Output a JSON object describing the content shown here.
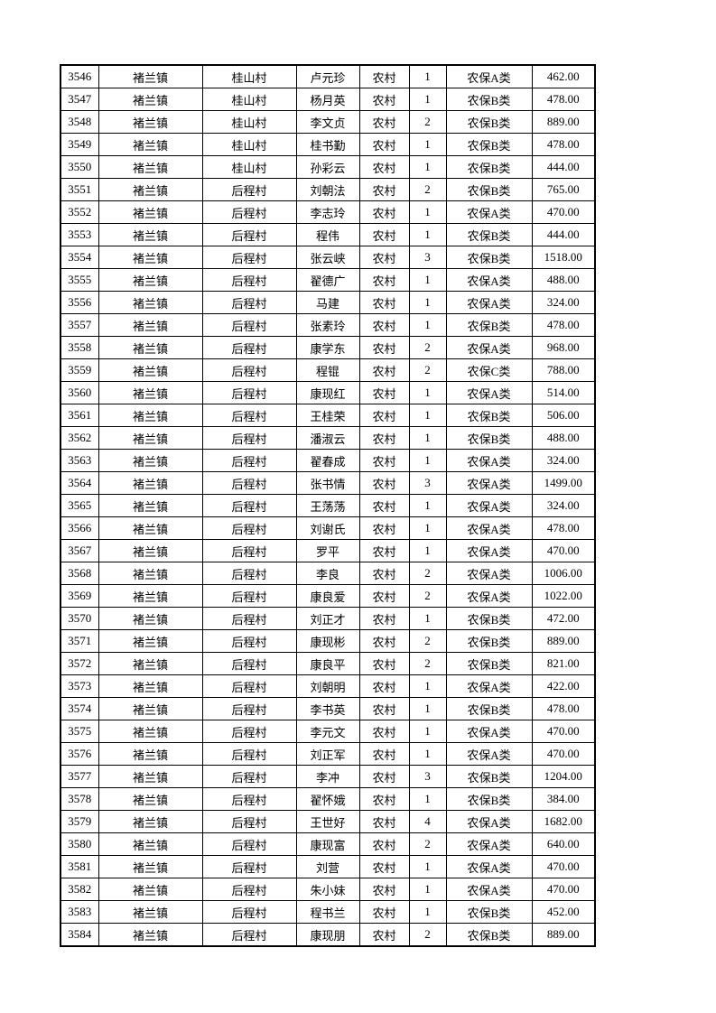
{
  "table": {
    "cell_roles": [
      "row-number",
      "town",
      "village",
      "name",
      "resident-type",
      "person-count",
      "insurance-category",
      "amount"
    ],
    "rows": [
      [
        "3546",
        "褚兰镇",
        "桂山村",
        "卢元珍",
        "农村",
        "1",
        "农保A类",
        "462.00"
      ],
      [
        "3547",
        "褚兰镇",
        "桂山村",
        "杨月英",
        "农村",
        "1",
        "农保B类",
        "478.00"
      ],
      [
        "3548",
        "褚兰镇",
        "桂山村",
        "李文贞",
        "农村",
        "2",
        "农保B类",
        "889.00"
      ],
      [
        "3549",
        "褚兰镇",
        "桂山村",
        "桂书勤",
        "农村",
        "1",
        "农保B类",
        "478.00"
      ],
      [
        "3550",
        "褚兰镇",
        "桂山村",
        "孙彩云",
        "农村",
        "1",
        "农保B类",
        "444.00"
      ],
      [
        "3551",
        "褚兰镇",
        "后程村",
        "刘朝法",
        "农村",
        "2",
        "农保B类",
        "765.00"
      ],
      [
        "3552",
        "褚兰镇",
        "后程村",
        "李志玲",
        "农村",
        "1",
        "农保A类",
        "470.00"
      ],
      [
        "3553",
        "褚兰镇",
        "后程村",
        "程伟",
        "农村",
        "1",
        "农保B类",
        "444.00"
      ],
      [
        "3554",
        "褚兰镇",
        "后程村",
        "张云峡",
        "农村",
        "3",
        "农保B类",
        "1518.00"
      ],
      [
        "3555",
        "褚兰镇",
        "后程村",
        "翟德广",
        "农村",
        "1",
        "农保A类",
        "488.00"
      ],
      [
        "3556",
        "褚兰镇",
        "后程村",
        "马建",
        "农村",
        "1",
        "农保A类",
        "324.00"
      ],
      [
        "3557",
        "褚兰镇",
        "后程村",
        "张素玲",
        "农村",
        "1",
        "农保B类",
        "478.00"
      ],
      [
        "3558",
        "褚兰镇",
        "后程村",
        "康学东",
        "农村",
        "2",
        "农保A类",
        "968.00"
      ],
      [
        "3559",
        "褚兰镇",
        "后程村",
        "程锟",
        "农村",
        "2",
        "农保C类",
        "788.00"
      ],
      [
        "3560",
        "褚兰镇",
        "后程村",
        "康现红",
        "农村",
        "1",
        "农保A类",
        "514.00"
      ],
      [
        "3561",
        "褚兰镇",
        "后程村",
        "王桂荣",
        "农村",
        "1",
        "农保B类",
        "506.00"
      ],
      [
        "3562",
        "褚兰镇",
        "后程村",
        "潘淑云",
        "农村",
        "1",
        "农保B类",
        "488.00"
      ],
      [
        "3563",
        "褚兰镇",
        "后程村",
        "翟春成",
        "农村",
        "1",
        "农保A类",
        "324.00"
      ],
      [
        "3564",
        "褚兰镇",
        "后程村",
        "张书情",
        "农村",
        "3",
        "农保A类",
        "1499.00"
      ],
      [
        "3565",
        "褚兰镇",
        "后程村",
        "王荡荡",
        "农村",
        "1",
        "农保A类",
        "324.00"
      ],
      [
        "3566",
        "褚兰镇",
        "后程村",
        "刘谢氏",
        "农村",
        "1",
        "农保A类",
        "478.00"
      ],
      [
        "3567",
        "褚兰镇",
        "后程村",
        "罗平",
        "农村",
        "1",
        "农保A类",
        "470.00"
      ],
      [
        "3568",
        "褚兰镇",
        "后程村",
        "李良",
        "农村",
        "2",
        "农保A类",
        "1006.00"
      ],
      [
        "3569",
        "褚兰镇",
        "后程村",
        "康良爱",
        "农村",
        "2",
        "农保A类",
        "1022.00"
      ],
      [
        "3570",
        "褚兰镇",
        "后程村",
        "刘正才",
        "农村",
        "1",
        "农保B类",
        "472.00"
      ],
      [
        "3571",
        "褚兰镇",
        "后程村",
        "康现彬",
        "农村",
        "2",
        "农保B类",
        "889.00"
      ],
      [
        "3572",
        "褚兰镇",
        "后程村",
        "康良平",
        "农村",
        "2",
        "农保B类",
        "821.00"
      ],
      [
        "3573",
        "褚兰镇",
        "后程村",
        "刘朝明",
        "农村",
        "1",
        "农保A类",
        "422.00"
      ],
      [
        "3574",
        "褚兰镇",
        "后程村",
        "李书英",
        "农村",
        "1",
        "农保B类",
        "478.00"
      ],
      [
        "3575",
        "褚兰镇",
        "后程村",
        "李元文",
        "农村",
        "1",
        "农保A类",
        "470.00"
      ],
      [
        "3576",
        "褚兰镇",
        "后程村",
        "刘正军",
        "农村",
        "1",
        "农保A类",
        "470.00"
      ],
      [
        "3577",
        "褚兰镇",
        "后程村",
        "李冲",
        "农村",
        "3",
        "农保B类",
        "1204.00"
      ],
      [
        "3578",
        "褚兰镇",
        "后程村",
        "翟怀娥",
        "农村",
        "1",
        "农保B类",
        "384.00"
      ],
      [
        "3579",
        "褚兰镇",
        "后程村",
        "王世好",
        "农村",
        "4",
        "农保A类",
        "1682.00"
      ],
      [
        "3580",
        "褚兰镇",
        "后程村",
        "康现富",
        "农村",
        "2",
        "农保A类",
        "640.00"
      ],
      [
        "3581",
        "褚兰镇",
        "后程村",
        "刘营",
        "农村",
        "1",
        "农保A类",
        "470.00"
      ],
      [
        "3582",
        "褚兰镇",
        "后程村",
        "朱小妹",
        "农村",
        "1",
        "农保A类",
        "470.00"
      ],
      [
        "3583",
        "褚兰镇",
        "后程村",
        "程书兰",
        "农村",
        "1",
        "农保B类",
        "452.00"
      ],
      [
        "3584",
        "褚兰镇",
        "后程村",
        "康现朋",
        "农村",
        "2",
        "农保B类",
        "889.00"
      ]
    ],
    "colors": {
      "text": "#000000",
      "border": "#000000",
      "page_background": "#ffffff"
    }
  }
}
